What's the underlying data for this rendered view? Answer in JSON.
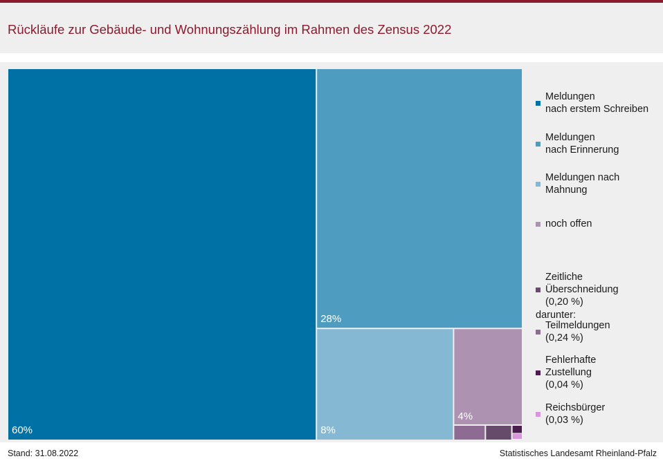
{
  "title": "Rückläufe zur Gebäude- und Wohnungszählung im Rahmen des Zensus 2022",
  "footer": {
    "stand": "Stand: 31.08.2022",
    "source": "Statistisches Landesamt Rheinland-Pfalz"
  },
  "legend": {
    "subheading": "darunter:",
    "main": [
      {
        "label": "Meldungen\nnach erstem Schreiben",
        "color": "#0071a4"
      },
      {
        "label": "Meldungen\nnach Erinnerung",
        "color": "#4e9dc0"
      },
      {
        "label": "Meldungen nach\nMahnung",
        "color": "#85b9d3"
      },
      {
        "label": "noch offen",
        "color": "#ae92b1"
      }
    ],
    "sub": [
      {
        "label": "Zeitliche\nÜberschneidung\n(0,20 %)",
        "color": "#664c6a"
      },
      {
        "label": "Teilmeldungen\n(0,24 %)",
        "color": "#8e6b92"
      },
      {
        "label": "Fehlerhafte\nZustellung\n(0,04 %)",
        "color": "#4c1c4f"
      },
      {
        "label": "Reichsbürger\n(0,03 %)",
        "color": "#d897dc"
      }
    ]
  },
  "chart_data": {
    "type": "treemap",
    "title": "Rückläufe zur Gebäude- und Wohnungszählung im Rahmen des Zensus 2022",
    "items": [
      {
        "name": "Meldungen nach erstem Schreiben",
        "value": 60,
        "label": "60%",
        "color": "#0071a4"
      },
      {
        "name": "Meldungen nach Erinnerung",
        "value": 28,
        "label": "28%",
        "color": "#4e9dc0"
      },
      {
        "name": "Meldungen nach Mahnung",
        "value": 8,
        "label": "8%",
        "color": "#85b9d3"
      },
      {
        "name": "noch offen",
        "value": 4,
        "label": "4%",
        "color": "#ae92b1",
        "children": [
          {
            "name": "Teilmeldungen",
            "value": 0.24,
            "color": "#8e6b92"
          },
          {
            "name": "Zeitliche Überschneidung",
            "value": 0.2,
            "color": "#664c6a"
          },
          {
            "name": "Fehlerhafte Zustellung",
            "value": 0.04,
            "color": "#4c1c4f"
          },
          {
            "name": "Reichsbürger",
            "value": 0.03,
            "color": "#d897dc"
          }
        ]
      }
    ]
  }
}
